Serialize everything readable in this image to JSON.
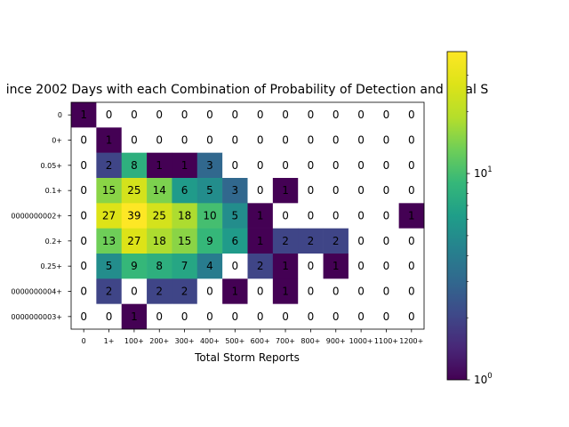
{
  "chart_data": {
    "type": "heatmap",
    "title": "ince 2002 Days with each Combination of Probability of Detection and Total S",
    "xlabel": "Total Storm Reports",
    "ylabel": "",
    "x_categories": [
      "0",
      "1+",
      "100+",
      "200+",
      "300+",
      "400+",
      "500+",
      "600+",
      "700+",
      "800+",
      "900+",
      "1000+",
      "1100+",
      "1200+"
    ],
    "y_categories": [
      "0",
      "0+",
      "0.05+",
      "0.1+",
      "0000000002+",
      "0.2+",
      "0.25+",
      "0000000004+",
      "0000000003+"
    ],
    "values": [
      [
        1,
        0,
        0,
        0,
        0,
        0,
        0,
        0,
        0,
        0,
        0,
        0,
        0,
        0
      ],
      [
        0,
        1,
        0,
        0,
        0,
        0,
        0,
        0,
        0,
        0,
        0,
        0,
        0,
        0
      ],
      [
        0,
        2,
        8,
        1,
        1,
        3,
        0,
        0,
        0,
        0,
        0,
        0,
        0,
        0
      ],
      [
        0,
        15,
        25,
        14,
        6,
        5,
        3,
        0,
        1,
        0,
        0,
        0,
        0,
        0
      ],
      [
        0,
        27,
        39,
        25,
        18,
        10,
        5,
        1,
        0,
        0,
        0,
        0,
        0,
        1
      ],
      [
        0,
        13,
        27,
        18,
        15,
        9,
        6,
        1,
        2,
        2,
        2,
        0,
        0,
        0
      ],
      [
        0,
        5,
        9,
        8,
        7,
        4,
        0,
        2,
        1,
        0,
        1,
        0,
        0,
        0
      ],
      [
        0,
        2,
        0,
        2,
        2,
        0,
        1,
        0,
        1,
        0,
        0,
        0,
        0,
        0
      ],
      [
        0,
        0,
        1,
        0,
        0,
        0,
        0,
        0,
        0,
        0,
        0,
        0,
        0,
        0
      ]
    ],
    "color_scale": "log",
    "colormap": "viridis",
    "zero_color": "#ffffff",
    "vmin": 1,
    "vmax": 39,
    "colorbar_ticks": [
      {
        "value": 1,
        "base": "10",
        "exp": "0"
      },
      {
        "value": 10,
        "base": "10",
        "exp": "1"
      }
    ],
    "grid": false
  }
}
